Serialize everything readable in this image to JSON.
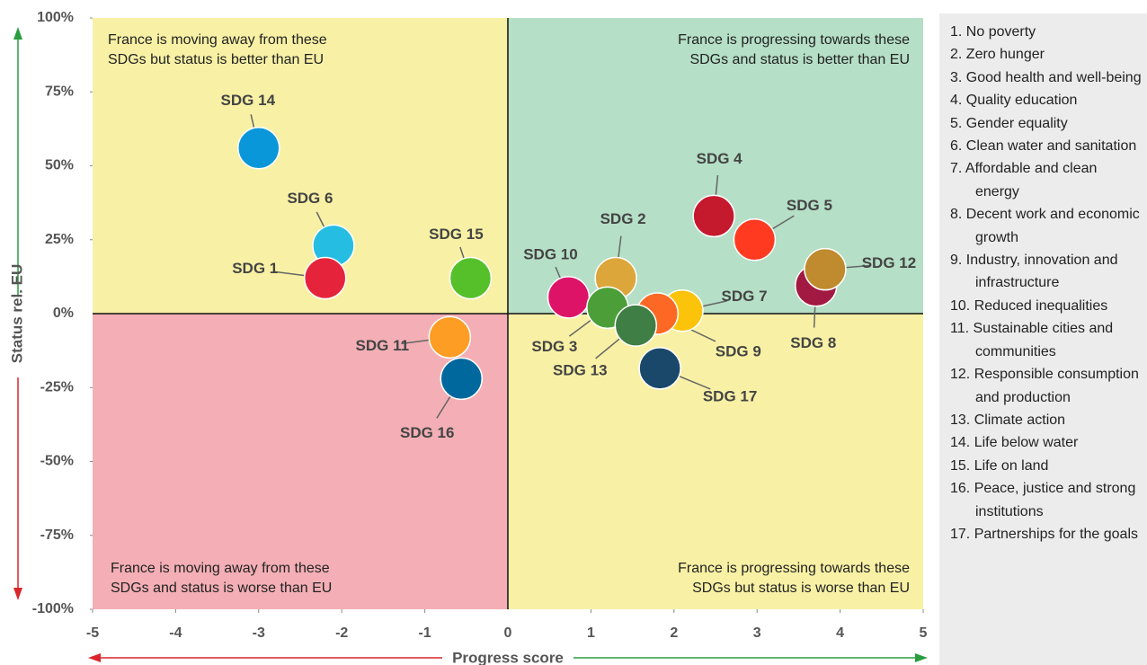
{
  "chart_data": {
    "type": "scatter",
    "xlabel": "Progress score",
    "ylabel": "Status rel. EU",
    "xlim": [
      -5,
      5
    ],
    "xticks": [
      -5,
      -4,
      -3,
      -2,
      -1,
      0,
      1,
      2,
      3,
      4,
      5
    ],
    "ylim": [
      -100,
      100
    ],
    "yticks": [
      {
        "value": -100,
        "label": "-100%"
      },
      {
        "value": -75,
        "label": "-75%"
      },
      {
        "value": -50,
        "label": "-50%"
      },
      {
        "value": -25,
        "label": "-25%"
      },
      {
        "value": 0,
        "label": "0%"
      },
      {
        "value": 25,
        "label": "25%"
      },
      {
        "value": 50,
        "label": "50%"
      },
      {
        "value": 75,
        "label": "75%"
      },
      {
        "value": 100,
        "label": "100%"
      }
    ],
    "annotations": [
      "France is moving away from these SDGs but status is better than EU",
      "France is progressing towards these SDGs and status is better than EU",
      "France is moving away from these SDGs and status is worse than EU",
      "France is progressing towards these SDGs but status is worse than EU"
    ],
    "series": [
      {
        "name": "SDG 14",
        "color": "#0a97d9",
        "x": [
          -3.0
        ],
        "values": [
          56
        ]
      },
      {
        "name": "SDG 6",
        "color": "#26bde2",
        "x": [
          -2.1
        ],
        "values": [
          23
        ]
      },
      {
        "name": "SDG 1",
        "color": "#e5243b",
        "x": [
          -2.2
        ],
        "values": [
          12
        ]
      },
      {
        "name": "SDG 15",
        "color": "#56c02b",
        "x": [
          -0.45
        ],
        "values": [
          12
        ]
      },
      {
        "name": "SDG 11",
        "color": "#fd9d24",
        "x": [
          -0.7
        ],
        "values": [
          -8
        ]
      },
      {
        "name": "SDG 16",
        "color": "#00689d",
        "x": [
          -0.56
        ],
        "values": [
          -22
        ]
      },
      {
        "name": "SDG 10",
        "color": "#dd1367",
        "x": [
          0.73
        ],
        "values": [
          5.5
        ]
      },
      {
        "name": "SDG 2",
        "color": "#dda63a",
        "x": [
          1.3
        ],
        "values": [
          12
        ]
      },
      {
        "name": "SDG 3",
        "color": "#4c9f38",
        "x": [
          1.2
        ],
        "values": [
          2
        ]
      },
      {
        "name": "SDG 7",
        "color": "#fcc30b",
        "x": [
          2.1
        ],
        "values": [
          1
        ]
      },
      {
        "name": "SDG 9",
        "color": "#fd6925",
        "x": [
          1.8
        ],
        "values": [
          0
        ]
      },
      {
        "name": "SDG 13",
        "color": "#3f7e44",
        "x": [
          1.54
        ],
        "values": [
          -4
        ]
      },
      {
        "name": "SDG 17",
        "color": "#19486a",
        "x": [
          1.83
        ],
        "values": [
          -18.5
        ]
      },
      {
        "name": "SDG 4",
        "color": "#c5192d",
        "x": [
          2.48
        ],
        "values": [
          33
        ]
      },
      {
        "name": "SDG 5",
        "color": "#ff3a21",
        "x": [
          2.97
        ],
        "values": [
          25
        ]
      },
      {
        "name": "SDG 8",
        "color": "#a21942",
        "x": [
          3.71
        ],
        "values": [
          9.5
        ]
      },
      {
        "name": "SDG 12",
        "color": "#bf8b2e",
        "x": [
          3.82
        ],
        "values": [
          15
        ]
      }
    ],
    "legend_items": [
      "1. No poverty",
      "2. Zero hunger",
      "3. Good health and well-being",
      "4. Quality education",
      "5. Gender equality",
      "6. Clean water and sanitation",
      "7. Affordable and clean energy",
      "8. Decent work and economic growth",
      "9. Industry, innovation and infrastructure",
      "10. Reduced inequalities",
      "11. Sustainable cities and communities",
      "12. Responsible consumption and production",
      "13. Climate action",
      "14. Life below water",
      "15. Life on land",
      "16. Peace, justice and strong institutions",
      "17. Partnerships for the goals"
    ]
  }
}
